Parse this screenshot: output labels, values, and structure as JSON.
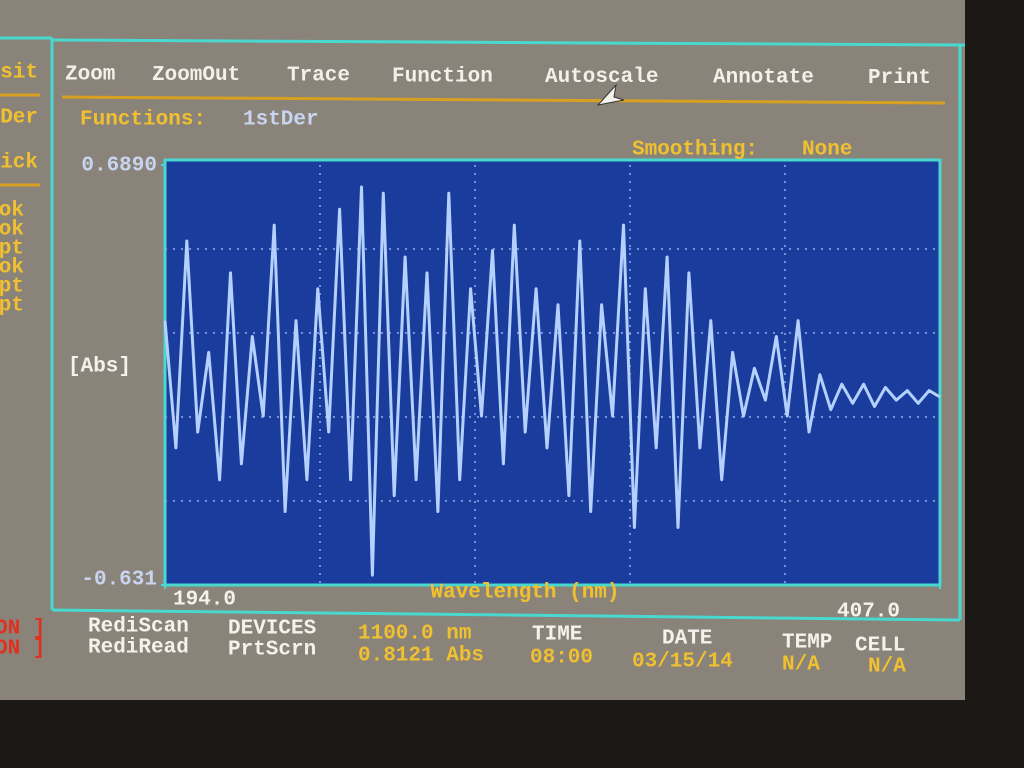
{
  "menu": [
    "Zoom",
    "ZoomOut",
    "Trace",
    "Function",
    "Autoscale",
    "Annotate",
    "Print"
  ],
  "functions": {
    "label": "Functions:",
    "value": "1stDer"
  },
  "smoothing": {
    "label": "Smoothing:",
    "value": "None"
  },
  "side_menu": [
    "sit",
    "Der",
    "ick"
  ],
  "side_list": [
    "ok",
    "ok",
    "pt",
    "ok",
    "pt",
    "pt"
  ],
  "status": {
    "flags": [
      "ON ]",
      "ON ]"
    ],
    "modes": [
      "RediScan",
      "RediRead"
    ],
    "devices": [
      "DEVICES",
      "PrtScrn"
    ],
    "readings": [
      "1100.0 nm",
      "0.8121 Abs"
    ],
    "time": [
      "TIME",
      "08:00"
    ],
    "date": [
      "DATE",
      "03/15/14"
    ],
    "temp": [
      "TEMP",
      "N/A"
    ],
    "cell": [
      "CELL",
      "N/A"
    ]
  },
  "chart_data": {
    "type": "line",
    "y_label": "[Abs]",
    "x_label": "Wavelength (nm)",
    "x": [
      194,
      197,
      200,
      203,
      206,
      209,
      212,
      215,
      218,
      221,
      224,
      227,
      230,
      233,
      236,
      239,
      242,
      245,
      248,
      251,
      254,
      257,
      260,
      263,
      266,
      269,
      272,
      275,
      278,
      281,
      284,
      287,
      290,
      293,
      296,
      299,
      302,
      305,
      308,
      311,
      314,
      317,
      320,
      323,
      326,
      329,
      332,
      335,
      338,
      341,
      344,
      347,
      350,
      353,
      356,
      359,
      362,
      365,
      368,
      371,
      374,
      377,
      380,
      383,
      386,
      389,
      392,
      395,
      398,
      401,
      404,
      407
    ],
    "values": [
      0.2,
      -0.2,
      0.45,
      -0.15,
      0.1,
      -0.3,
      0.35,
      -0.25,
      0.15,
      -0.1,
      0.5,
      -0.4,
      0.2,
      -0.3,
      0.3,
      -0.15,
      0.55,
      -0.3,
      0.62,
      -0.6,
      0.6,
      -0.35,
      0.4,
      -0.3,
      0.35,
      -0.4,
      0.6,
      -0.3,
      0.3,
      -0.1,
      0.42,
      -0.25,
      0.5,
      -0.15,
      0.3,
      -0.2,
      0.25,
      -0.35,
      0.45,
      -0.4,
      0.25,
      -0.1,
      0.5,
      -0.45,
      0.3,
      -0.2,
      0.4,
      -0.45,
      0.35,
      -0.2,
      0.2,
      -0.3,
      0.1,
      -0.1,
      0.05,
      -0.05,
      0.15,
      -0.1,
      0.2,
      -0.15,
      0.03,
      -0.08,
      0.0,
      -0.06,
      0.0,
      -0.07,
      -0.01,
      -0.05,
      -0.02,
      -0.06,
      -0.02,
      -0.04
    ],
    "color": "#b4d0ff",
    "xlim": [
      194,
      407
    ],
    "xticks": [
      {
        "value": 194,
        "label": "194.0"
      },
      {
        "value": 407,
        "label": "407.0"
      }
    ],
    "ylim": [
      -0.631,
      0.689
    ],
    "yticks": [
      {
        "value": -0.631,
        "label": "-0.631"
      },
      {
        "value": 0.689,
        "label": "0.6890"
      }
    ],
    "grid": true
  }
}
